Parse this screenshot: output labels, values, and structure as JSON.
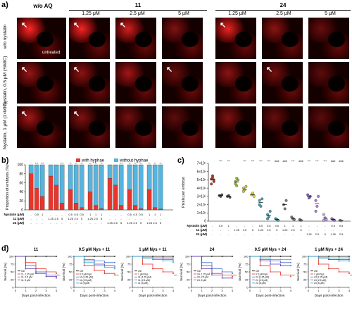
{
  "panel_a": {
    "letter": "a)",
    "headers": {
      "wo_aq": "w/o AQ",
      "compound_11": "11",
      "compound_24": "24",
      "concentrations": [
        "1.25 μM",
        "2.5 μM",
        "5 μM",
        "1.25 μM",
        "2.5 μM",
        "5 μM"
      ]
    },
    "row_labels": [
      "w/o nystatin",
      "Nystatin, 0.5 μM (½MIC)",
      "Nystatin, 1 μM (1×MIC)"
    ],
    "untreated_label": "untreated"
  },
  "panel_b": {
    "letter": "b)",
    "legend": {
      "with_hyphae": "with hyphae",
      "without_hyphae": "without hyphae"
    },
    "colors": {
      "with_hyphae": "#e8352b",
      "without_hyphae": "#56b4de"
    },
    "y_label": "Proportion of embryos (%)",
    "y_ticks": [
      "0",
      "20",
      "40",
      "60",
      "80",
      "100"
    ],
    "row_labels": [
      "Nystatin (μM)",
      "11 (μM)",
      "24 (μM)"
    ],
    "nystatin_values": [
      "-",
      "0.5",
      "1",
      "-",
      "-",
      "-",
      "0.5",
      "0.5",
      "0.5",
      "1",
      "1",
      "1",
      "-",
      "-",
      "-",
      "0.5",
      "0.5",
      "0.5",
      "1",
      "1",
      "1"
    ],
    "c11_values": [
      "-",
      "-",
      "-",
      "1.25",
      "2.5",
      "5",
      "1.25",
      "2.5",
      "5",
      "1.25",
      "2.5",
      "5",
      "-",
      "-",
      "-",
      "-",
      "-",
      "-",
      "-",
      "-",
      "-"
    ],
    "c24_values": [
      "-",
      "-",
      "-",
      "-",
      "-",
      "-",
      "-",
      "-",
      "-",
      "-",
      "-",
      "-",
      "1.25",
      "2.5",
      "5",
      "1.25",
      "2.5",
      "5",
      "1.25",
      "2.5",
      "5"
    ],
    "stars_above": [
      "",
      "***",
      "***",
      "",
      "",
      "***",
      "**",
      "**",
      "**",
      "**",
      "**",
      "**",
      "",
      "",
      "***",
      "**",
      "**",
      "**",
      "**",
      "**",
      "**"
    ]
  },
  "chart_data": [
    {
      "type": "bar",
      "title": "",
      "ylabel": "Proportion of embryos (%)",
      "ylim": [
        0,
        100
      ],
      "categories": [
        "1",
        "2",
        "3",
        "4",
        "5",
        "6",
        "7",
        "8",
        "9",
        "10",
        "11",
        "12",
        "13",
        "14",
        "15",
        "16",
        "17",
        "18",
        "19",
        "20",
        "21"
      ],
      "series": [
        {
          "name": "with hyphae",
          "values": [
            80,
            48,
            30,
            75,
            55,
            15,
            45,
            15,
            5,
            40,
            10,
            3,
            70,
            55,
            10,
            45,
            10,
            3,
            45,
            5,
            2
          ]
        },
        {
          "name": "without hyphae",
          "values": [
            20,
            52,
            70,
            25,
            45,
            85,
            55,
            85,
            95,
            60,
            90,
            97,
            30,
            45,
            90,
            55,
            90,
            97,
            55,
            95,
            98
          ]
        }
      ]
    },
    {
      "type": "scatter",
      "title": "",
      "ylabel": "Pixels per embryo",
      "y_tick_labels": [
        "0",
        "1×10⁴",
        "2×10⁴",
        "3×10⁴",
        "4×10⁴",
        "5×10⁴",
        "6×10⁴",
        "7×10⁴"
      ],
      "ylim": [
        0,
        70000
      ],
      "groups": [
        {
          "values": [
            51000,
            55000,
            48000,
            45000,
            53000,
            50000
          ]
        },
        {
          "values": [
            31000,
            30000,
            32000
          ]
        },
        {
          "values": [
            30000,
            31000,
            29000
          ]
        },
        {
          "values": [
            48000,
            43000,
            50000,
            45000,
            52000
          ]
        },
        {
          "values": [
            40000,
            38000,
            42000,
            36000
          ]
        },
        {
          "values": [
            32000,
            34000,
            30000
          ]
        },
        {
          "values": [
            25000,
            18000,
            27000,
            20000
          ]
        },
        {
          "values": [
            8000,
            5000,
            12000,
            3000
          ]
        },
        {
          "values": [
            3000,
            2000,
            1000
          ]
        },
        {
          "values": [
            20000,
            15000,
            25000
          ]
        },
        {
          "values": [
            5000,
            3000,
            2000
          ]
        },
        {
          "values": [
            2000,
            1000
          ]
        },
        {
          "values": [
            32000,
            28000,
            30000
          ]
        },
        {
          "values": [
            25000,
            18000,
            30000,
            12000
          ]
        },
        {
          "values": [
            8000,
            4000,
            2000,
            1000
          ]
        },
        {
          "values": [
            3000,
            2000,
            1000
          ]
        },
        {
          "values": [
            1000,
            500
          ]
        }
      ]
    },
    {
      "type": "line",
      "title": "11",
      "xlabel": "Days post-infection",
      "ylabel": "Survival (%)",
      "ylim": [
        0,
        100
      ],
      "x": [
        0,
        1,
        2,
        3,
        4
      ],
      "series": [
        {
          "name": "Ctrl",
          "values": [
            100,
            100,
            100,
            100,
            100
          ]
        },
        {
          "name": "11, 1.25 μM",
          "values": [
            100,
            80,
            60,
            50,
            45
          ]
        },
        {
          "name": "11, 2.5 μM",
          "values": [
            100,
            70,
            50,
            40,
            35
          ]
        },
        {
          "name": "11, 5 μM",
          "values": [
            100,
            60,
            45,
            35,
            30
          ]
        }
      ]
    },
    {
      "type": "line",
      "title": "0.5 μM Nys + 11",
      "xlabel": "Days post-infection",
      "ylabel": "Survival (%)",
      "ylim": [
        0,
        100
      ],
      "x": [
        0,
        1,
        2,
        3,
        4
      ],
      "series": [
        {
          "name": "Ctrl",
          "values": [
            100,
            100,
            100,
            100,
            100
          ]
        },
        {
          "name": "0.5 μM Nys",
          "values": [
            100,
            70,
            55,
            45,
            40
          ]
        },
        {
          "name": "11 (1.25 μM)",
          "values": [
            100,
            90,
            85,
            80,
            80
          ]
        },
        {
          "name": "11 (2.5 μM)",
          "values": [
            100,
            85,
            75,
            70,
            65
          ]
        },
        {
          "name": "11 (5 μM)",
          "values": [
            100,
            80,
            70,
            65,
            60
          ]
        }
      ]
    },
    {
      "type": "line",
      "title": "1 μM Nys + 11",
      "xlabel": "Days post-infection",
      "ylabel": "Survival (%)",
      "ylim": [
        0,
        100
      ],
      "x": [
        0,
        1,
        2,
        3,
        4
      ],
      "series": [
        {
          "name": "Ctrl",
          "values": [
            100,
            100,
            100,
            100,
            100
          ]
        },
        {
          "name": "1 μM Nys",
          "values": [
            100,
            75,
            60,
            50,
            45
          ]
        },
        {
          "name": "11 (1.25 μM)",
          "values": [
            100,
            95,
            90,
            90,
            85
          ]
        },
        {
          "name": "11 (2.5 μM)",
          "values": [
            100,
            95,
            95,
            95,
            95
          ]
        },
        {
          "name": "11 (5 μM)",
          "values": [
            100,
            95,
            90,
            85,
            80
          ]
        }
      ]
    },
    {
      "type": "line",
      "title": "24",
      "xlabel": "Days post-infection",
      "ylabel": "Survival (%)",
      "ylim": [
        0,
        100
      ],
      "x": [
        0,
        1,
        2,
        3,
        4
      ],
      "series": [
        {
          "name": "Ctrl",
          "values": [
            100,
            100,
            100,
            100,
            100
          ]
        },
        {
          "name": "24, 1.25 μM",
          "values": [
            100,
            70,
            45,
            40,
            35
          ]
        },
        {
          "name": "24, 2.5 μM",
          "values": [
            100,
            80,
            60,
            50,
            45
          ]
        },
        {
          "name": "24, 5 μM",
          "values": [
            100,
            60,
            40,
            30,
            30
          ]
        }
      ]
    },
    {
      "type": "line",
      "title": "0.5 μM Nys + 24",
      "xlabel": "Days post-infection",
      "ylabel": "Survival (%)",
      "ylim": [
        0,
        100
      ],
      "x": [
        0,
        1,
        2,
        3,
        4
      ],
      "series": [
        {
          "name": "Ctrl",
          "values": [
            100,
            100,
            100,
            100,
            100
          ]
        },
        {
          "name": "0.5 μM Nys",
          "values": [
            100,
            70,
            50,
            40,
            35
          ]
        },
        {
          "name": "24 (1.25 μM)",
          "values": [
            100,
            90,
            85,
            80,
            80
          ]
        },
        {
          "name": "24 (2.5 μM)",
          "values": [
            100,
            85,
            75,
            70,
            70
          ]
        },
        {
          "name": "24 (5 μM)",
          "values": [
            100,
            95,
            90,
            90,
            90
          ]
        }
      ]
    },
    {
      "type": "line",
      "title": "1 μM Nys + 24",
      "xlabel": "Days post-infection",
      "ylabel": "Survival (%)",
      "ylim": [
        0,
        100
      ],
      "x": [
        0,
        1,
        2,
        3,
        4
      ],
      "series": [
        {
          "name": "Ctrl",
          "values": [
            100,
            100,
            100,
            100,
            100
          ]
        },
        {
          "name": "1 μM Nys",
          "values": [
            100,
            75,
            60,
            50,
            45
          ]
        },
        {
          "name": "24 (1.25 μM)",
          "values": [
            100,
            95,
            90,
            85,
            85
          ]
        },
        {
          "name": "24 (2.5 μM)",
          "values": [
            100,
            95,
            90,
            90,
            90
          ]
        },
        {
          "name": "24 (5 μM)",
          "values": [
            100,
            95,
            95,
            95,
            95
          ]
        }
      ]
    }
  ],
  "panel_c": {
    "letter": "c)",
    "y_label": "Pixels per embryo",
    "y_ticks": [
      "0",
      "1×10⁴",
      "2×10⁴",
      "3×10⁴",
      "4×10⁴",
      "5×10⁴",
      "6×10⁴",
      "7×10⁴"
    ],
    "row_labels": [
      "Nystatin (μM)",
      "11 (μM)",
      "24 (μM)"
    ],
    "nystatin_values": [
      "-",
      "0.5",
      "1",
      "-",
      "-",
      "-",
      "0.5",
      "0.5",
      "0.5",
      "1",
      "1",
      "1",
      "-",
      "-",
      "-",
      "0.5",
      "0.5"
    ],
    "c11_values": [
      "-",
      "-",
      "-",
      "1.25",
      "2.5",
      "5",
      "1.25",
      "2.5",
      "5",
      "1.25",
      "2.5",
      "5",
      "-",
      "-",
      "-",
      "-",
      "-"
    ],
    "c24_values": [
      "-",
      "-",
      "-",
      "-",
      "-",
      "-",
      "-",
      "-",
      "-",
      "-",
      "-",
      "-",
      "1.25",
      "2.5",
      "5",
      "1.25",
      "2.5"
    ],
    "stars_top": [
      "",
      "***",
      "***",
      "",
      "***",
      "***",
      "***",
      "***",
      "###",
      "###",
      "***",
      "###",
      "***",
      "***",
      "***",
      "###",
      "###"
    ],
    "colors": [
      "#c0392b",
      "#555555",
      "#555555",
      "#8fbf3f",
      "#c9c93a",
      "#d8d840",
      "#4aa1a8",
      "#4aa1a8",
      "#4aa1a8",
      "#7a7a7a",
      "#7a7a7a",
      "#7a7a7a",
      "#8f5fbf",
      "#b07fd0",
      "#c3a0de",
      "#9b6fc6",
      "#a98ad3"
    ]
  },
  "panel_d": {
    "letter": "d)",
    "titles": [
      "11",
      "0.5 μM Nys + 11",
      "1 μM Nys + 11",
      "24",
      "0.5 μM Nys + 24",
      "1 μM Nys + 24"
    ],
    "y_label": "Survival (%)",
    "x_label": "Days post-infection",
    "y_ticks": [
      "0",
      "25",
      "50",
      "75",
      "100"
    ],
    "x_ticks": [
      "0",
      "1",
      "2",
      "3",
      "4"
    ],
    "legends": [
      [
        "Ctrl",
        "11, 1.25 μM",
        "11, 2.5 μM",
        "11, 5 μM"
      ],
      [
        "Ctrl",
        "0.5 μM Nys",
        "11 (1.25 μM)",
        "11 (2.5 μM)",
        "11 (5 μM)"
      ],
      [
        "Ctrl",
        "1 μM Nys",
        "11 (1.25 μM)",
        "11 (2.5 μM)",
        "11 (5 μM)"
      ],
      [
        "Ctrl",
        "24, 1.25 μM",
        "24, 2.5 μM",
        "24, 5 μM"
      ],
      [
        "Ctrl",
        "0.5 μM Nys",
        "24 (1.25 μM)",
        "24 (2.5 μM)",
        "24 (5 μM)"
      ],
      [
        "Ctrl",
        "1 μM Nys",
        "24 (1.25 μM)",
        "24 (2.5 μM)",
        "24 (5 μM)"
      ]
    ],
    "stars": [
      "***",
      "***",
      "***",
      "***",
      "***",
      "***"
    ],
    "series_colors": [
      "#000000",
      "#e8352b",
      "#3a6fd8",
      "#6a3fb0",
      "#2eaec8"
    ]
  }
}
